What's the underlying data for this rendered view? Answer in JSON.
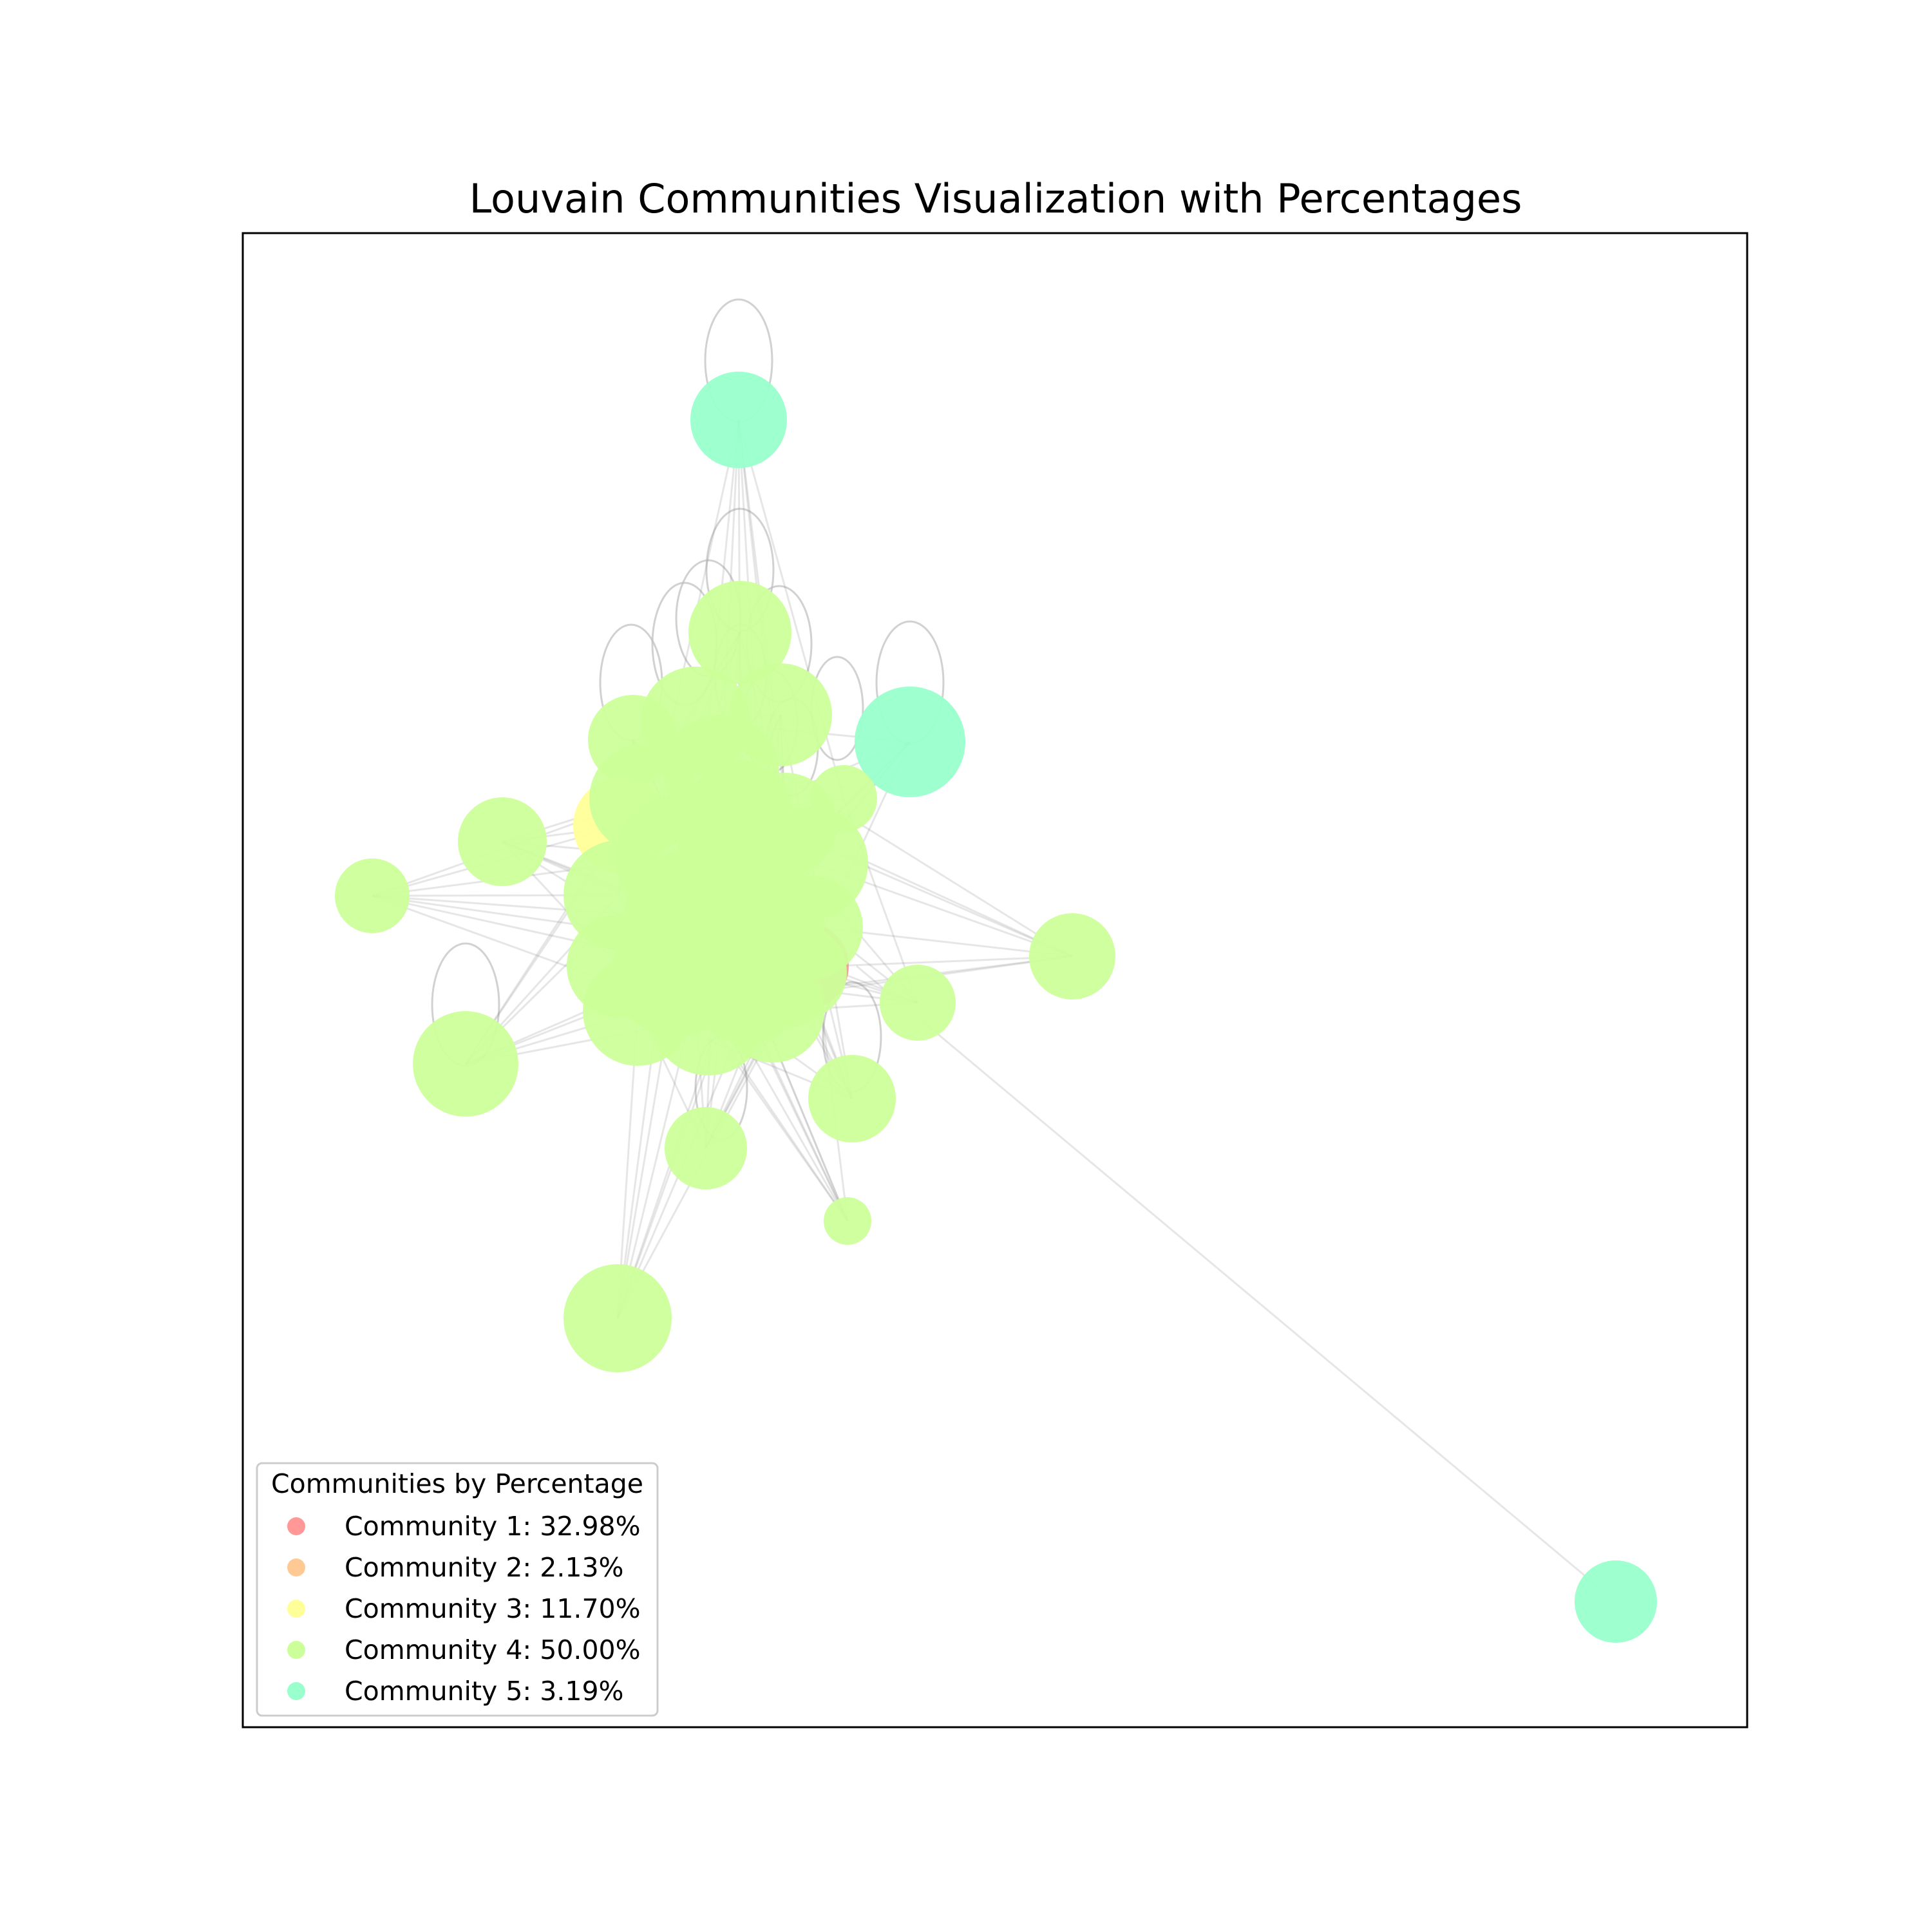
{
  "chart_data": {
    "type": "network",
    "title": "Louvain Communities Visualization with Percentages",
    "grid": false,
    "legend": {
      "title": "Communities by Percentage",
      "placement": "lower-left",
      "entries": [
        {
          "label": "Community 1: 32.98%",
          "community": 1,
          "percentage": 32.98,
          "color": "#ff9896"
        },
        {
          "label": "Community 2: 2.13%",
          "community": 2,
          "percentage": 2.13,
          "color": "#ffc994"
        },
        {
          "label": "Community 3: 11.70%",
          "community": 3,
          "percentage": 11.7,
          "color": "#ffff99"
        },
        {
          "label": "Community 4: 50.00%",
          "community": 4,
          "percentage": 50.0,
          "color": "#ccff99"
        },
        {
          "label": "Community 5: 3.19%",
          "community": 5,
          "percentage": 3.19,
          "color": "#99ffcc"
        }
      ]
    },
    "edge_color": "#8c8c8c"
  }
}
